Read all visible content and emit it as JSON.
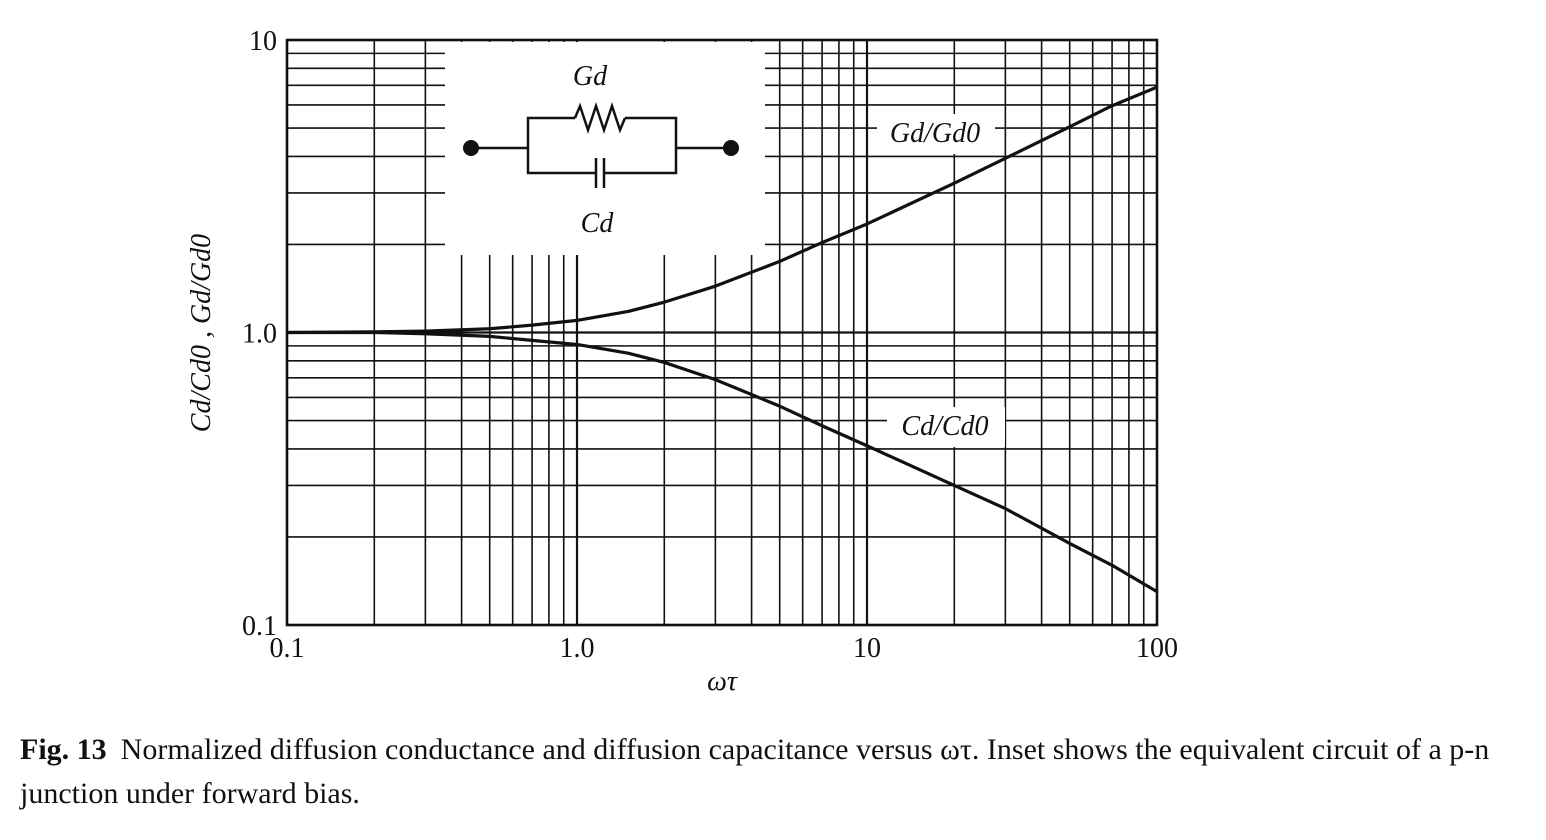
{
  "chart_data": {
    "type": "line",
    "x_label": "ωτ",
    "y_label": "Cd/Cd0 , Gd/Gd0",
    "log_x": true,
    "log_y": true,
    "grid": true,
    "minor_grid": true,
    "xlim": [
      0.1,
      100
    ],
    "ylim": [
      0.1,
      10
    ],
    "xticks": [
      0.1,
      {
        "value": 1,
        "label": "1.0"
      },
      10,
      100
    ],
    "yticks": [
      0.1,
      {
        "value": 1,
        "label": "1.0"
      },
      10
    ],
    "x": [
      0.1,
      0.2,
      0.3,
      0.5,
      0.7,
      1,
      1.5,
      2,
      3,
      5,
      7,
      10,
      20,
      30,
      50,
      70,
      100
    ],
    "series": [
      {
        "name": "Gd/Gd0",
        "color": "#111111",
        "values": [
          1.0,
          1.005,
          1.011,
          1.03,
          1.06,
          1.1,
          1.18,
          1.27,
          1.44,
          1.75,
          2.03,
          2.35,
          3.24,
          3.94,
          5.05,
          5.96,
          6.9
        ]
      },
      {
        "name": "Cd/Cd0",
        "color": "#111111",
        "values": [
          1.0,
          1.0,
          0.99,
          0.97,
          0.94,
          0.91,
          0.85,
          0.79,
          0.69,
          0.56,
          0.48,
          0.41,
          0.3,
          0.25,
          0.19,
          0.16,
          0.13
        ]
      }
    ],
    "inset_labels": {
      "resistor": "Gd",
      "capacitor": "Cd"
    }
  },
  "caption": {
    "label": "Fig. 13",
    "text": "Normalized diffusion conductance and diffusion capacitance versus ωτ. Inset shows the equivalent circuit of a p-n junction under forward bias."
  }
}
